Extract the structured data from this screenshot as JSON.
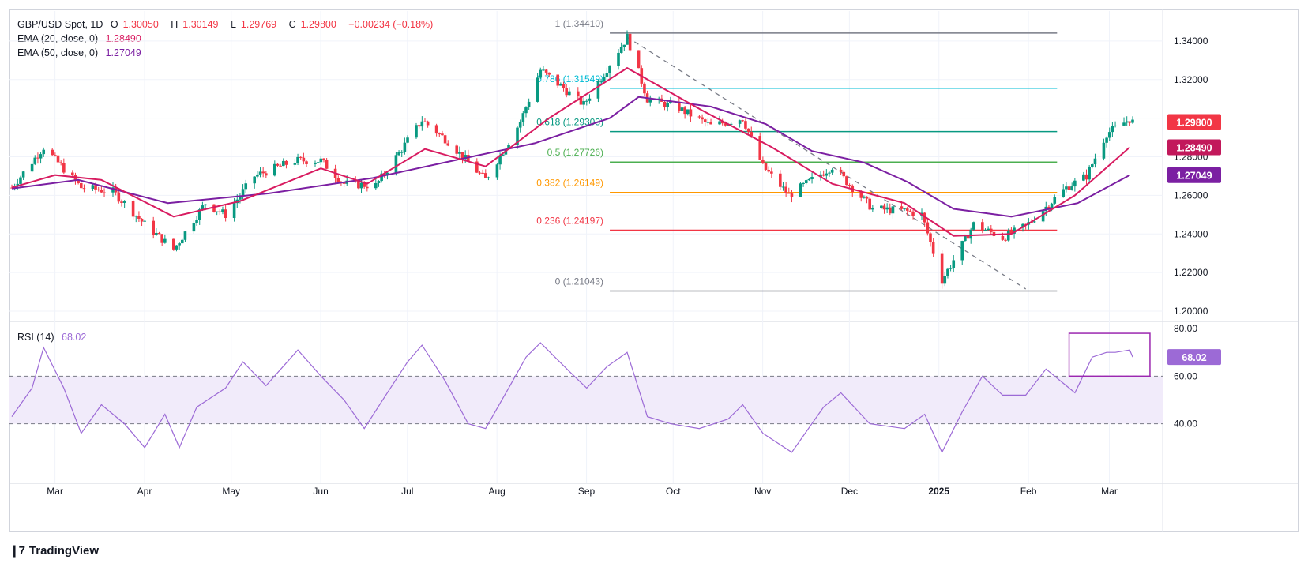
{
  "header": {
    "symbol": "GBP/USD Spot, 1D",
    "ohlc": {
      "o_label": "O",
      "o": "1.30050",
      "h_label": "H",
      "h": "1.30149",
      "l_label": "L",
      "l": "1.29769",
      "c_label": "C",
      "c": "1.29800",
      "change": "−0.00234 (−0.18%)"
    },
    "ema20_label": "EMA (20, close, 0)",
    "ema20_value": "1.28490",
    "ema50_label": "EMA (50, close, 0)",
    "ema50_value": "1.27049",
    "rsi_label": "RSI (14)",
    "rsi_value": "68.02"
  },
  "brand": "TradingView",
  "colors": {
    "up": "#089981",
    "down": "#f23645",
    "ema20": "#d81b60",
    "ema50": "#7b1fa2",
    "rsi": "#9c6ad6"
  },
  "chart_data": [
    {
      "type": "candlestick",
      "title": "GBP/USD Spot, 1D",
      "price_axis_ticks": [
        "1.34000",
        "1.32000",
        "1.30000",
        "1.28000",
        "1.26000",
        "1.24000",
        "1.22000",
        "1.20000"
      ],
      "ylim": [
        1.1955,
        1.3555
      ],
      "x_ticks": [
        "Mar",
        "Apr",
        "May",
        "Jun",
        "Jul",
        "Aug",
        "Sep",
        "Oct",
        "Nov",
        "Dec",
        "2025",
        "Feb",
        "Mar"
      ],
      "last_price": 1.298,
      "last_price_label": "1.29800",
      "fibonacci": [
        {
          "label": "1 (1.34410)",
          "value": 1.3441,
          "color": "#787b86"
        },
        {
          "label": "0.786 (1.31549)",
          "value": 1.31549,
          "color": "#00bcd4"
        },
        {
          "label": "0.618 (1.29303)",
          "value": 1.29303,
          "color": "#089981"
        },
        {
          "label": "0.5 (1.27726)",
          "value": 1.27726,
          "color": "#4caf50"
        },
        {
          "label": "0.382 (1.26149)",
          "value": 1.26149,
          "color": "#ff9800"
        },
        {
          "label": "0.236 (1.24197)",
          "value": 1.24197,
          "color": "#f23645"
        },
        {
          "label": "0 (1.21043)",
          "value": 1.21043,
          "color": "#787b86"
        }
      ],
      "trendline": {
        "from": [
          "2024-09-26",
          1.342
        ],
        "to": [
          "2025-02-11",
          1.2115
        ]
      },
      "ema20": {
        "name": "EMA (20, close, 0)",
        "last": "1.28490",
        "points": [
          [
            "2024-02-26",
            1.264
          ],
          [
            "2024-03-12",
            1.2705
          ],
          [
            "2024-03-28",
            1.268
          ],
          [
            "2024-04-22",
            1.249
          ],
          [
            "2024-05-15",
            1.257
          ],
          [
            "2024-06-12",
            1.274
          ],
          [
            "2024-06-28",
            1.266
          ],
          [
            "2024-07-18",
            1.284
          ],
          [
            "2024-08-08",
            1.275
          ],
          [
            "2024-08-30",
            1.3
          ],
          [
            "2024-09-26",
            1.326
          ],
          [
            "2024-10-22",
            1.304
          ],
          [
            "2024-11-15",
            1.285
          ],
          [
            "2024-12-06",
            1.266
          ],
          [
            "2024-12-31",
            1.256
          ],
          [
            "2025-01-17",
            1.239
          ],
          [
            "2025-02-06",
            1.24
          ],
          [
            "2025-02-28",
            1.26
          ],
          [
            "2025-03-19",
            1.2849
          ]
        ]
      },
      "ema50": {
        "name": "EMA (50, close, 0)",
        "last": "1.27049",
        "points": [
          [
            "2024-02-26",
            1.2635
          ],
          [
            "2024-03-20",
            1.268
          ],
          [
            "2024-04-20",
            1.256
          ],
          [
            "2024-05-25",
            1.261
          ],
          [
            "2024-06-30",
            1.269
          ],
          [
            "2024-07-31",
            1.279
          ],
          [
            "2024-08-25",
            1.287
          ],
          [
            "2024-09-20",
            1.3
          ],
          [
            "2024-09-30",
            1.311
          ],
          [
            "2024-10-25",
            1.306
          ],
          [
            "2024-11-13",
            1.297
          ],
          [
            "2024-11-29",
            1.283
          ],
          [
            "2024-12-17",
            1.277
          ],
          [
            "2025-01-01",
            1.267
          ],
          [
            "2025-01-17",
            1.253
          ],
          [
            "2025-02-06",
            1.249
          ],
          [
            "2025-03-01",
            1.256
          ],
          [
            "2025-03-19",
            1.2705
          ]
        ]
      },
      "price_path": [
        [
          "2024-02-26",
          1.264
        ],
        [
          "2024-03-08",
          1.285
        ],
        [
          "2024-03-21",
          1.264
        ],
        [
          "2024-04-01",
          1.262
        ],
        [
          "2024-04-12",
          1.245
        ],
        [
          "2024-04-22",
          1.232
        ],
        [
          "2024-05-03",
          1.256
        ],
        [
          "2024-05-10",
          1.25
        ],
        [
          "2024-05-20",
          1.27
        ],
        [
          "2024-06-03",
          1.278
        ],
        [
          "2024-06-12",
          1.278
        ],
        [
          "2024-06-20",
          1.266
        ],
        [
          "2024-07-01",
          1.265
        ],
        [
          "2024-07-10",
          1.284
        ],
        [
          "2024-07-17",
          1.299
        ],
        [
          "2024-07-26",
          1.288
        ],
        [
          "2024-08-08",
          1.268
        ],
        [
          "2024-08-20",
          1.298
        ],
        [
          "2024-08-27",
          1.325
        ],
        [
          "2024-09-11",
          1.307
        ],
        [
          "2024-09-26",
          1.342
        ],
        [
          "2024-10-03",
          1.31
        ],
        [
          "2024-10-14",
          1.305
        ],
        [
          "2024-10-25",
          1.296
        ],
        [
          "2024-11-05",
          1.3
        ],
        [
          "2024-11-12",
          1.275
        ],
        [
          "2024-11-21",
          1.26
        ],
        [
          "2024-12-06",
          1.275
        ],
        [
          "2024-12-20",
          1.253
        ],
        [
          "2024-12-31",
          1.252
        ],
        [
          "2025-01-06",
          1.25
        ],
        [
          "2025-01-13",
          1.216
        ],
        [
          "2025-01-24",
          1.245
        ],
        [
          "2025-02-03",
          1.238
        ],
        [
          "2025-02-11",
          1.244
        ],
        [
          "2025-02-25",
          1.264
        ],
        [
          "2025-03-04",
          1.27
        ],
        [
          "2025-03-11",
          1.292
        ],
        [
          "2025-03-19",
          1.2995
        ],
        [
          "2025-03-20",
          1.298
        ]
      ]
    },
    {
      "type": "line",
      "title": "RSI (14)",
      "ylim": [
        15,
        82
      ],
      "y_ticks": [
        "80.00",
        "60.00",
        "40.00"
      ],
      "band": [
        40,
        60
      ],
      "last": 68.02,
      "last_label": "68.02",
      "series": [
        {
          "name": "RSI (14)",
          "values": [
            [
              "2024-02-26",
              43
            ],
            [
              "2024-03-04",
              55
            ],
            [
              "2024-03-08",
              72
            ],
            [
              "2024-03-15",
              55
            ],
            [
              "2024-03-21",
              36
            ],
            [
              "2024-03-28",
              48
            ],
            [
              "2024-04-05",
              40
            ],
            [
              "2024-04-12",
              30
            ],
            [
              "2024-04-19",
              44
            ],
            [
              "2024-04-24",
              30
            ],
            [
              "2024-04-30",
              47
            ],
            [
              "2024-05-10",
              55
            ],
            [
              "2024-05-16",
              66
            ],
            [
              "2024-05-24",
              56
            ],
            [
              "2024-06-04",
              71
            ],
            [
              "2024-06-12",
              60
            ],
            [
              "2024-06-20",
              50
            ],
            [
              "2024-06-27",
              38
            ],
            [
              "2024-07-05",
              53
            ],
            [
              "2024-07-12",
              66
            ],
            [
              "2024-07-17",
              73
            ],
            [
              "2024-07-25",
              58
            ],
            [
              "2024-08-02",
              40
            ],
            [
              "2024-08-08",
              38
            ],
            [
              "2024-08-16",
              55
            ],
            [
              "2024-08-22",
              68
            ],
            [
              "2024-08-27",
              74
            ],
            [
              "2024-09-06",
              62
            ],
            [
              "2024-09-12",
              55
            ],
            [
              "2024-09-19",
              64
            ],
            [
              "2024-09-26",
              70
            ],
            [
              "2024-10-03",
              43
            ],
            [
              "2024-10-11",
              40
            ],
            [
              "2024-10-21",
              38
            ],
            [
              "2024-10-31",
              42
            ],
            [
              "2024-11-05",
              48
            ],
            [
              "2024-11-12",
              36
            ],
            [
              "2024-11-22",
              28
            ],
            [
              "2024-12-03",
              47
            ],
            [
              "2024-12-09",
              53
            ],
            [
              "2024-12-19",
              40
            ],
            [
              "2024-12-31",
              38
            ],
            [
              "2025-01-07",
              44
            ],
            [
              "2025-01-13",
              28
            ],
            [
              "2025-01-20",
              45
            ],
            [
              "2025-01-27",
              60
            ],
            [
              "2025-02-03",
              52
            ],
            [
              "2025-02-11",
              52
            ],
            [
              "2025-02-18",
              63
            ],
            [
              "2025-02-25",
              56
            ],
            [
              "2025-02-28",
              53
            ],
            [
              "2025-03-06",
              68
            ],
            [
              "2025-03-11",
              70
            ],
            [
              "2025-03-14",
              70
            ],
            [
              "2025-03-19",
              71
            ],
            [
              "2025-03-20",
              68.02
            ]
          ]
        }
      ]
    }
  ]
}
